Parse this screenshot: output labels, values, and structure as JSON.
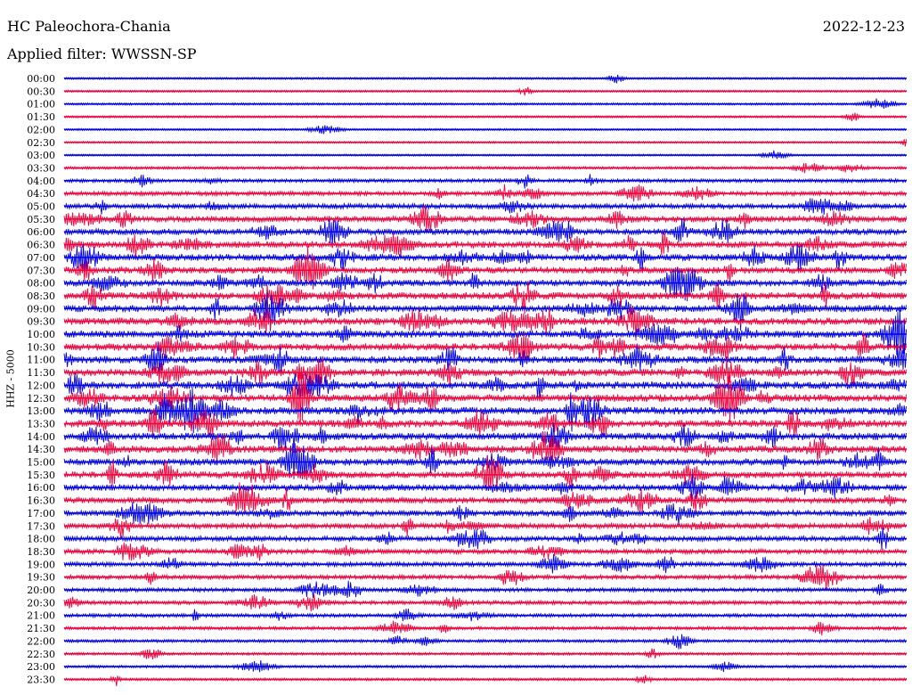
{
  "header": {
    "station": "HC Paleochora-Chania",
    "date": "2022-12-23",
    "filter": "Applied filter: WWSSN-SP",
    "channel": "HHZ - 5000"
  },
  "colors": {
    "trace_a": "#0000e6",
    "trace_b": "#f0003c",
    "background": "#ffffff",
    "text": "#000000"
  },
  "chart_data": {
    "type": "line",
    "ylabel": "HHZ - 5000",
    "row_labels": [
      "00:00",
      "00:30",
      "01:00",
      "01:30",
      "02:00",
      "02:30",
      "03:00",
      "03:30",
      "04:00",
      "04:30",
      "05:00",
      "05:30",
      "06:00",
      "06:30",
      "07:00",
      "07:30",
      "08:00",
      "08:30",
      "09:00",
      "09:30",
      "10:00",
      "10:30",
      "11:00",
      "11:30",
      "12:00",
      "12:30",
      "13:00",
      "13:30",
      "14:00",
      "14:30",
      "15:00",
      "15:30",
      "16:00",
      "16:30",
      "17:00",
      "17:30",
      "18:00",
      "18:30",
      "19:00",
      "19:30",
      "20:00",
      "20:30",
      "21:00",
      "21:30",
      "22:00",
      "22:30",
      "23:00",
      "23:30"
    ],
    "trace_colors": [
      "blue",
      "red"
    ],
    "row_activity": [
      0.1,
      0.1,
      0.12,
      0.1,
      0.08,
      0.08,
      0.08,
      0.2,
      0.35,
      0.45,
      0.6,
      0.75,
      0.8,
      0.85,
      0.9,
      0.85,
      0.85,
      0.9,
      0.9,
      0.95,
      0.95,
      0.95,
      0.95,
      0.95,
      1.0,
      1.0,
      1.0,
      1.0,
      0.95,
      0.95,
      0.9,
      0.85,
      0.8,
      0.75,
      0.7,
      0.65,
      0.6,
      0.55,
      0.5,
      0.45,
      0.4,
      0.4,
      0.35,
      0.3,
      0.25,
      0.2,
      0.2,
      0.18
    ]
  }
}
